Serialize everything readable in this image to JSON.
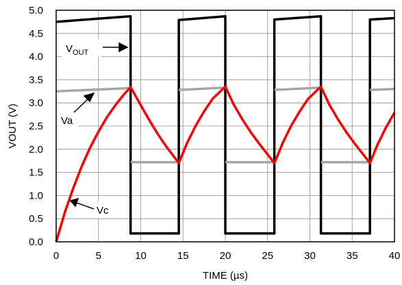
{
  "chart_data": {
    "type": "line",
    "xlabel": "TIME (µs)",
    "ylabel": "VOUT (V)",
    "xlim": [
      0,
      40
    ],
    "ylim": [
      0,
      5
    ],
    "xticks": [
      "0",
      "5",
      "10",
      "15",
      "20",
      "25",
      "30",
      "35",
      "40"
    ],
    "yticks": [
      "0.0",
      "0.5",
      "1.0",
      "1.5",
      "2.0",
      "2.5",
      "3.0",
      "3.5",
      "4.0",
      "4.5",
      "5.0"
    ],
    "grid": true,
    "series": [
      {
        "name": "VOUT",
        "color": "#000000",
        "x": [
          0,
          4.4,
          8.8,
          8.8,
          14.5,
          14.5,
          20,
          20,
          25.8,
          25.8,
          31.3,
          31.3,
          37.1,
          37.1,
          40
        ],
        "y": [
          4.75,
          4.81,
          4.87,
          0.18,
          0.18,
          4.79,
          4.87,
          0.18,
          0.18,
          4.8,
          4.87,
          0.18,
          0.18,
          4.8,
          4.83
        ]
      },
      {
        "name": "Va",
        "color": "#a6a6a6",
        "segments": [
          {
            "x": [
              0,
              8.8
            ],
            "y": [
              3.25,
              3.32
            ]
          },
          {
            "x": [
              8.8,
              14.5
            ],
            "y": [
              1.72,
              1.72
            ]
          },
          {
            "x": [
              14.5,
              20
            ],
            "y": [
              3.28,
              3.33
            ]
          },
          {
            "x": [
              20,
              25.8
            ],
            "y": [
              1.72,
              1.72
            ]
          },
          {
            "x": [
              25.8,
              31.3
            ],
            "y": [
              3.28,
              3.33
            ]
          },
          {
            "x": [
              31.3,
              37.1
            ],
            "y": [
              1.72,
              1.72
            ]
          },
          {
            "x": [
              37.1,
              40
            ],
            "y": [
              3.28,
              3.3
            ]
          }
        ]
      },
      {
        "name": "Vc",
        "color": "#ff0000",
        "x": [
          0,
          1,
          2,
          3,
          4,
          5,
          6,
          7,
          8,
          8.8,
          10,
          11,
          12,
          13,
          14.5,
          15.5,
          16.5,
          17.5,
          18.5,
          20,
          21,
          22,
          23,
          24,
          25.8,
          26.8,
          27.8,
          28.8,
          29.8,
          31.3,
          32.3,
          33.3,
          34.3,
          35.3,
          37.1,
          38,
          39,
          40
        ],
        "y": [
          0.0,
          0.62,
          1.15,
          1.62,
          2.03,
          2.38,
          2.69,
          2.95,
          3.18,
          3.34,
          2.95,
          2.63,
          2.33,
          2.06,
          1.7,
          2.14,
          2.51,
          2.82,
          3.09,
          3.35,
          2.96,
          2.65,
          2.37,
          2.12,
          1.7,
          2.14,
          2.51,
          2.82,
          3.09,
          3.35,
          2.96,
          2.65,
          2.37,
          2.12,
          1.7,
          2.1,
          2.47,
          2.79
        ]
      }
    ],
    "annotations": [
      {
        "label": "V",
        "subscript": "OUT",
        "points_to": "VOUT"
      },
      {
        "label": "Va",
        "points_to": "Va"
      },
      {
        "label": "Vc",
        "points_to": "Vc"
      }
    ]
  }
}
